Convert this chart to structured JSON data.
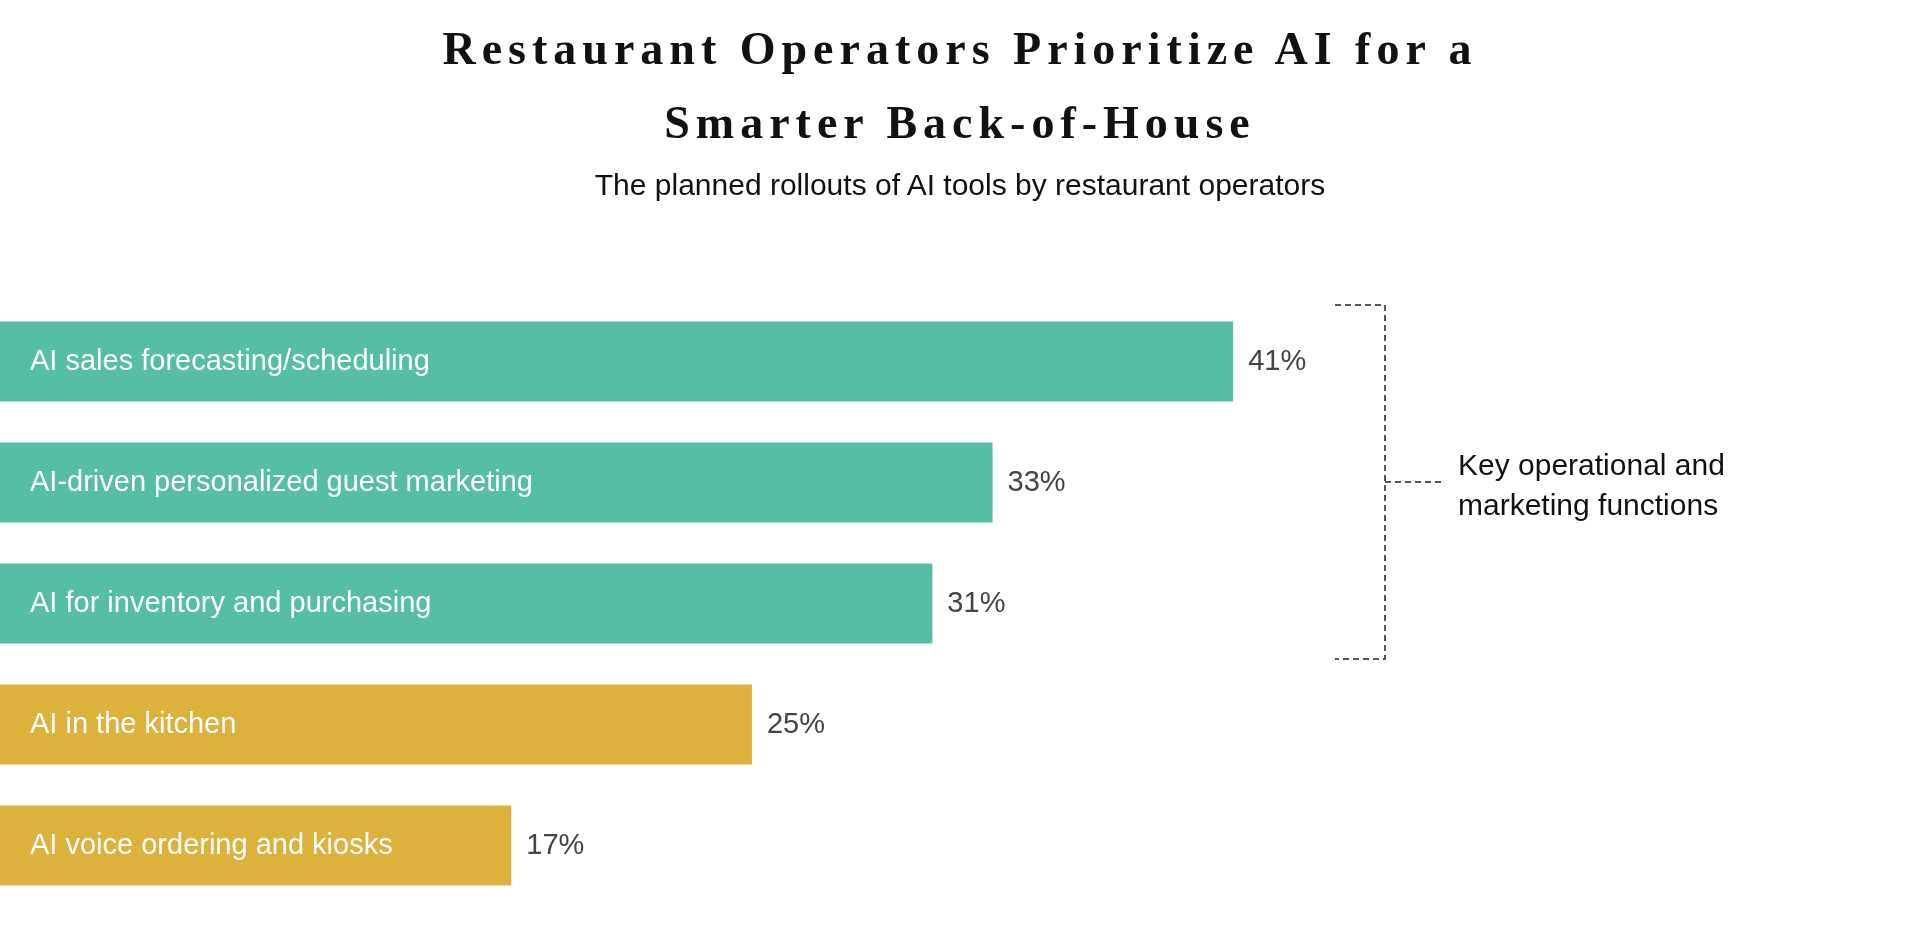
{
  "chart_data": {
    "type": "bar",
    "orientation": "horizontal",
    "title": "Restaurant Operators Prioritize AI for a Smarter Back-of-House",
    "subtitle": "The planned rollouts of AI tools by restaurant operators",
    "categories": [
      "AI sales forecasting/scheduling",
      "AI-driven personalized guest marketing",
      "AI for inventory and purchasing",
      "AI in the kitchen",
      "AI voice ordering and kiosks"
    ],
    "values": [
      41,
      33,
      31,
      25,
      17
    ],
    "colors": [
      "#56bea5",
      "#56bea5",
      "#56bea5",
      "#dcb13c",
      "#dcb13c"
    ],
    "value_labels": [
      "41%",
      "33%",
      "31%",
      "25%",
      "17%"
    ],
    "annotations": [
      "Key operational and marketing functions"
    ],
    "legend": false
  }
}
